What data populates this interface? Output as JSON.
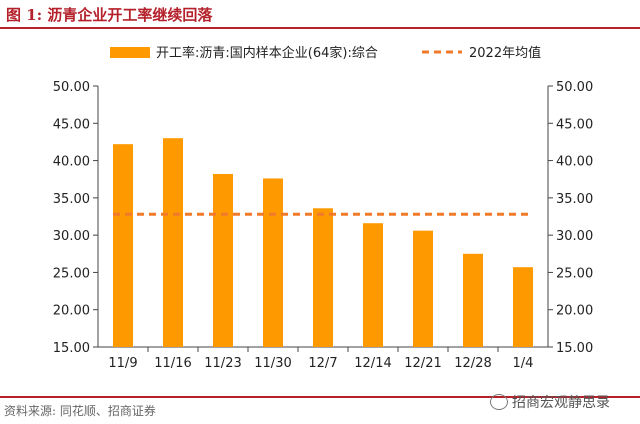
{
  "header": {
    "title": "图 1:  沥青企业开工率继续回落"
  },
  "footer": {
    "source": "资料来源:  同花顺、招商证券",
    "watermark": "招商宏观静思录"
  },
  "colors": {
    "bar": "#ff9900",
    "reference": "#f07a2a",
    "accent": "#b5212b"
  },
  "chart_data": {
    "type": "bar",
    "categories": [
      "11/9",
      "11/16",
      "11/23",
      "11/30",
      "12/7",
      "12/14",
      "12/21",
      "12/28",
      "1/4"
    ],
    "series": [
      {
        "name": "开工率:沥青:国内样本企业(64家):综合",
        "values": [
          42.2,
          43.0,
          38.2,
          37.6,
          33.6,
          31.6,
          30.6,
          27.5,
          25.7
        ]
      }
    ],
    "reference_line": {
      "name": "2022年均值",
      "value": 32.8
    },
    "ylim": [
      15,
      50
    ],
    "yticks": [
      "15.00",
      "20.00",
      "25.00",
      "30.00",
      "35.00",
      "40.00",
      "45.00",
      "50.00"
    ],
    "y2ticks": [
      "15.00",
      "20.00",
      "25.00",
      "30.00",
      "35.00",
      "40.00",
      "45.00",
      "50.00"
    ],
    "legend_position": "top",
    "grid": false
  }
}
